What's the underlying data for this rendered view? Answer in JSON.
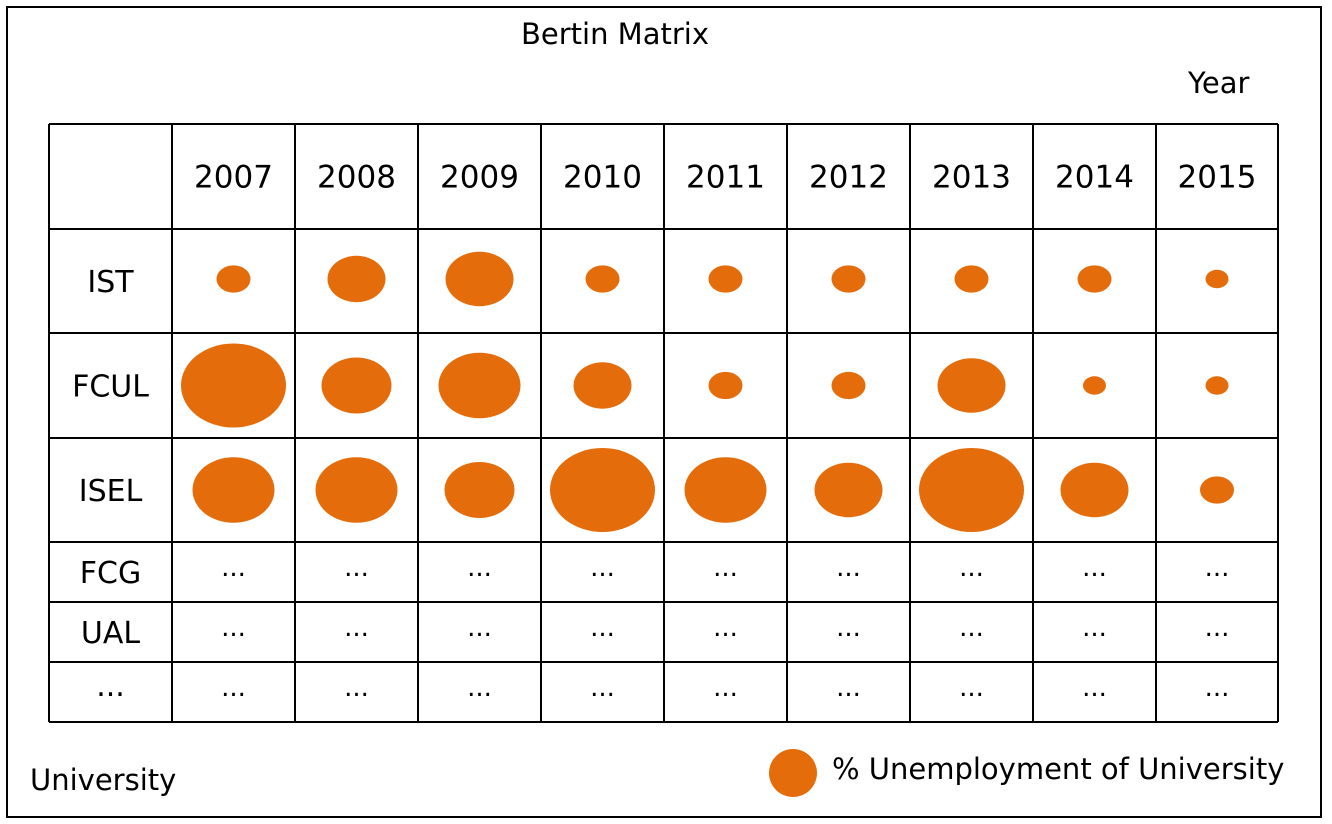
{
  "chart_data": {
    "type": "bubble-matrix",
    "title": "Bertin Matrix",
    "x_title": "Year",
    "y_title": "University",
    "legend_label": "% Unemployment of University",
    "columns": [
      "2007",
      "2008",
      "2009",
      "2010",
      "2011",
      "2012",
      "2013",
      "2014",
      "2015"
    ],
    "rows": [
      {
        "label": "IST",
        "values": [
          34,
          58,
          68,
          34,
          34,
          34,
          34,
          34,
          23
        ]
      },
      {
        "label": "FCUL",
        "values": [
          105,
          70,
          82,
          58,
          34,
          34,
          68,
          23,
          23
        ]
      },
      {
        "label": "ISEL",
        "values": [
          82,
          82,
          70,
          105,
          82,
          68,
          105,
          68,
          34
        ]
      },
      {
        "label": "FCG",
        "values": [
          "...",
          "...",
          "...",
          "...",
          "...",
          "...",
          "...",
          "...",
          "..."
        ]
      },
      {
        "label": "UAL",
        "values": [
          "...",
          "...",
          "...",
          "...",
          "...",
          "...",
          "...",
          "...",
          "..."
        ]
      },
      {
        "label": "...",
        "values": [
          "...",
          "...",
          "...",
          "...",
          "...",
          "...",
          "...",
          "...",
          "..."
        ]
      }
    ],
    "bubble_color": "#E46C0A"
  }
}
